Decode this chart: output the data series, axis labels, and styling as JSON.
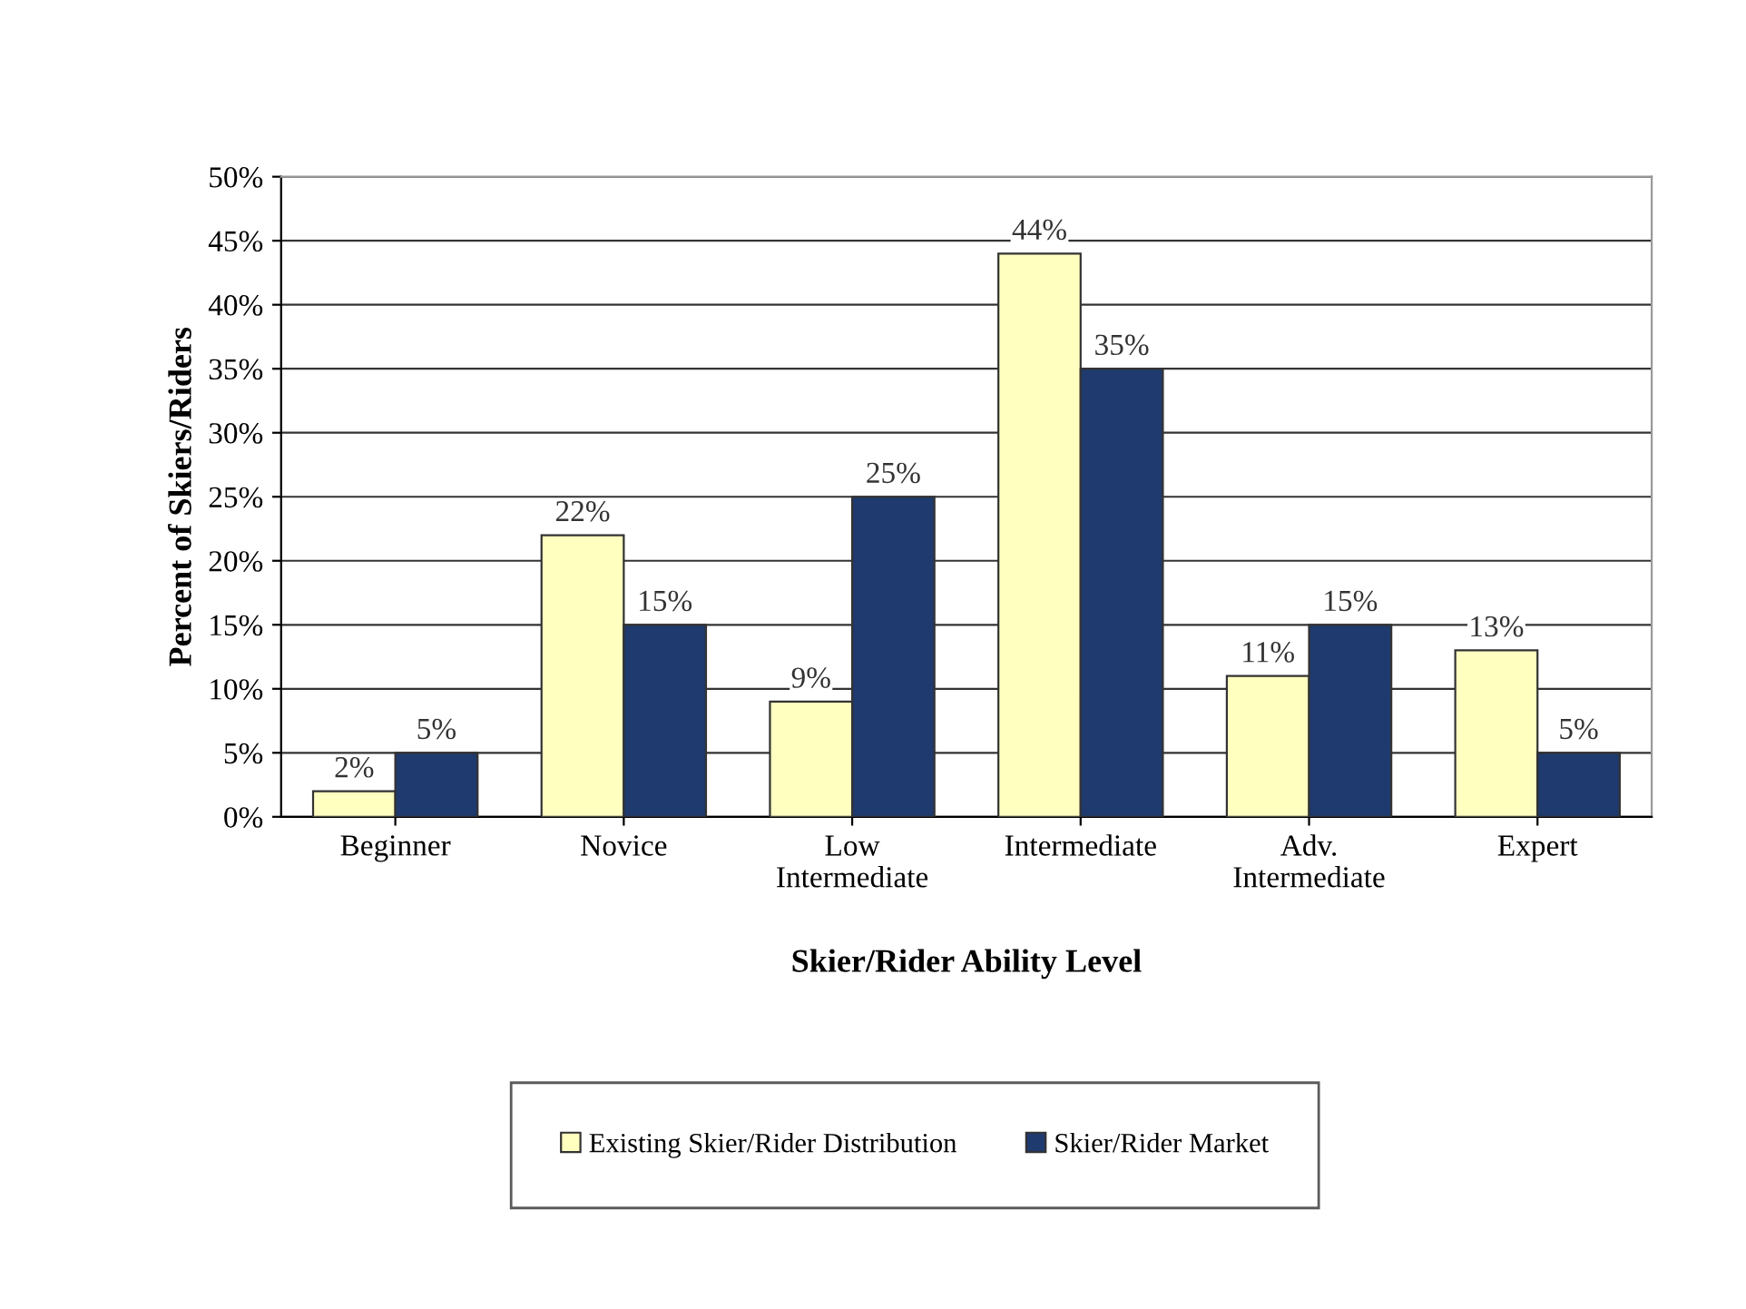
{
  "chart_data": {
    "type": "bar",
    "xlabel": "Skier/Rider Ability Level",
    "ylabel": "Percent of Skiers/Riders",
    "categories": [
      "Beginner",
      "Novice",
      "Low\nIntermediate",
      "Intermediate",
      "Adv.\nIntermediate",
      "Expert"
    ],
    "series": [
      {
        "name": "Existing Skier/Rider Distribution",
        "color": "#ffffc0",
        "values": [
          2,
          22,
          9,
          44,
          11,
          13
        ],
        "value_labels": [
          "2%",
          "22%",
          "9%",
          "44%",
          "11%",
          "13%"
        ]
      },
      {
        "name": "Skier/Rider Market",
        "color": "#1f3a6e",
        "values": [
          5,
          15,
          25,
          35,
          15,
          5
        ],
        "value_labels": [
          "5%",
          "15%",
          "25%",
          "35%",
          "15%",
          "5%"
        ]
      }
    ],
    "ylim": [
      0,
      50
    ],
    "yticks": [
      {
        "value": 0,
        "label": "0%"
      },
      {
        "value": 5,
        "label": "5%"
      },
      {
        "value": 10,
        "label": "10%"
      },
      {
        "value": 15,
        "label": "15%"
      },
      {
        "value": 20,
        "label": "20%"
      },
      {
        "value": 25,
        "label": "25%"
      },
      {
        "value": 30,
        "label": "30%"
      },
      {
        "value": 35,
        "label": "35%"
      },
      {
        "value": 40,
        "label": "40%"
      },
      {
        "value": 45,
        "label": "45%"
      },
      {
        "value": 50,
        "label": "50%"
      }
    ],
    "grid": "y",
    "legend": "bottom"
  }
}
